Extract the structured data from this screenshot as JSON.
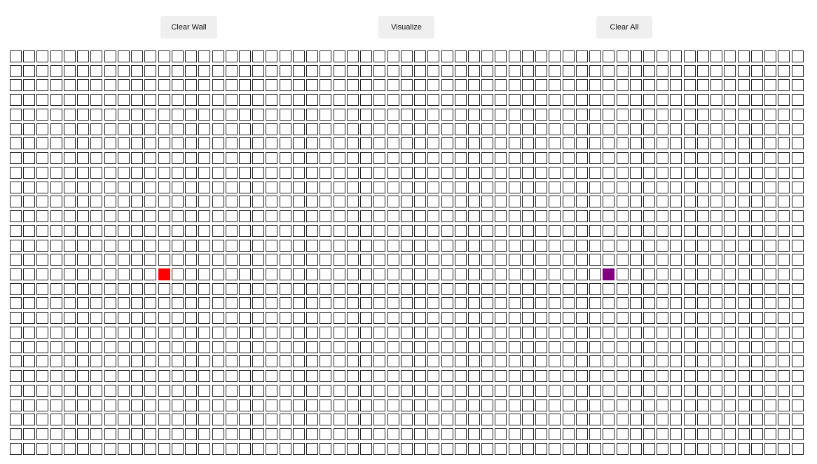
{
  "toolbar": {
    "clear_wall_label": "Clear Wall",
    "visualize_label": "Visualize",
    "clear_all_label": "Clear All"
  },
  "grid": {
    "rows": 28,
    "cols": 59,
    "start": {
      "row": 15,
      "col": 11
    },
    "target": {
      "row": 15,
      "col": 44
    },
    "colors": {
      "start": "#ff0000",
      "target": "#800080",
      "empty": "#ffffff",
      "border": "#222222"
    }
  }
}
